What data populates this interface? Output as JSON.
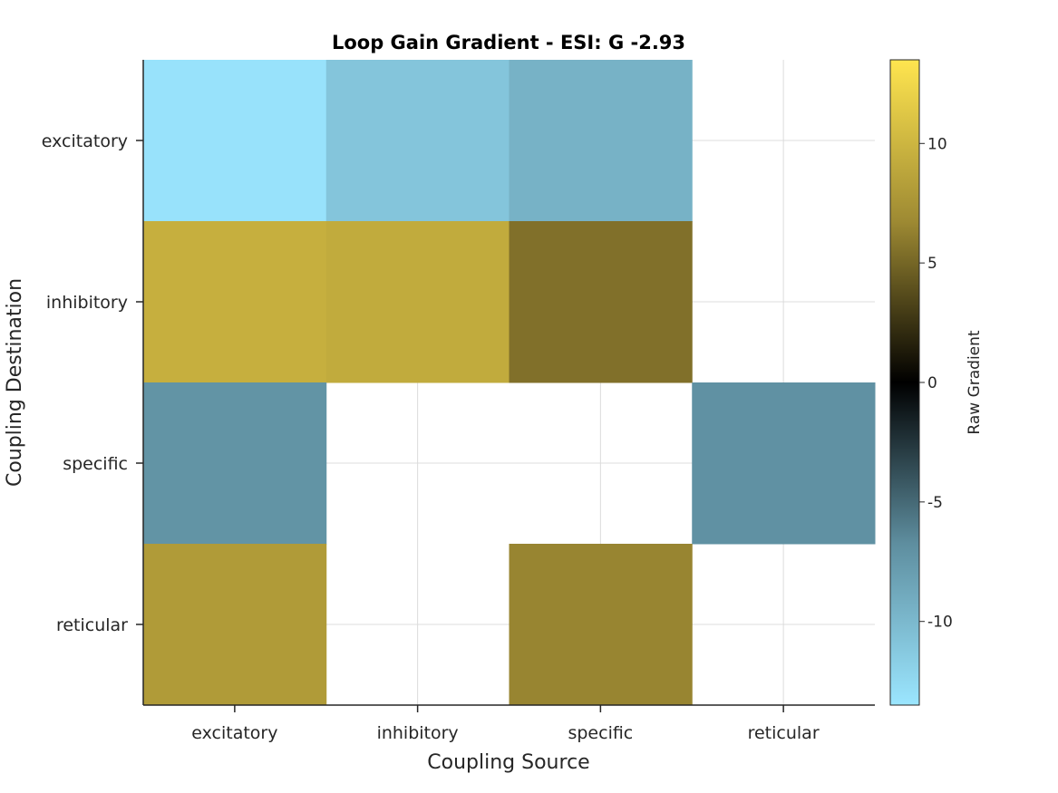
{
  "chart_data": {
    "type": "heatmap",
    "title": "Loop Gain Gradient - ESI: G -2.93",
    "xlabel": "Coupling Source",
    "ylabel": "Coupling Destination",
    "x_categories": [
      "excitatory",
      "inhibitory",
      "specific",
      "reticular"
    ],
    "y_categories": [
      "excitatory",
      "inhibitory",
      "specific",
      "reticular"
    ],
    "values": [
      [
        -13.2,
        -11.0,
        -9.5,
        null
      ],
      [
        9.5,
        9.2,
        5.5,
        null
      ],
      [
        -7.2,
        null,
        null,
        -7.0
      ],
      [
        8.0,
        null,
        6.5,
        null
      ]
    ],
    "colorbar": {
      "label": "Raw Gradient",
      "range": [
        -13.5,
        13.5
      ],
      "ticks": [
        10,
        5,
        0,
        -5,
        -10
      ],
      "tick_labels": [
        "10",
        "5",
        "0",
        "-5",
        "-10"
      ],
      "colors": {
        "negative_end": "#9be6ff",
        "zero": "#000000",
        "positive_end": "#ffe54f"
      }
    },
    "grid": true
  }
}
